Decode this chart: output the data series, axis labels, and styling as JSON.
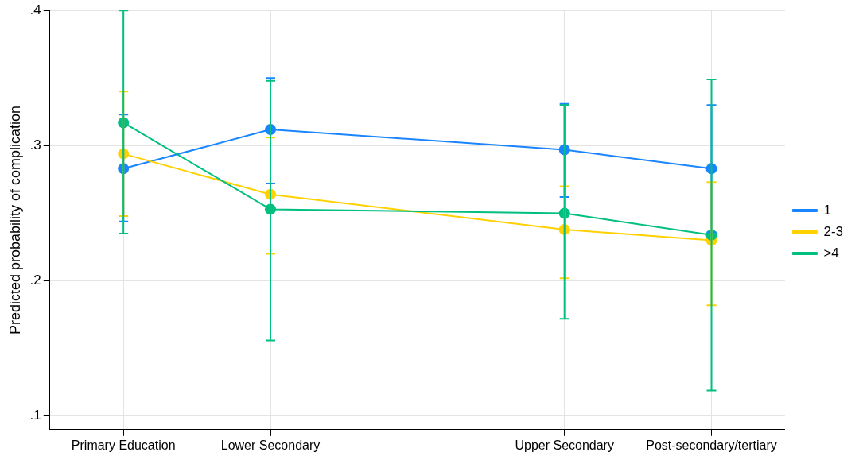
{
  "chart_data": {
    "type": "line",
    "ylabel": "Predicted probability of complication",
    "categories": [
      "Primary Education",
      "Lower Secondary",
      null,
      "Upper Secondary",
      "Post-secondary/tertiary"
    ],
    "ylim": [
      0.09,
      0.4
    ],
    "yticks": [
      {
        "value": 0.1,
        "label": ".1"
      },
      {
        "value": 0.2,
        "label": ".2"
      },
      {
        "value": 0.3,
        "label": ".3"
      },
      {
        "value": 0.4,
        "label": ".4"
      }
    ],
    "series": [
      {
        "name": "1",
        "color": "#1a85ff",
        "values": [
          0.283,
          0.312,
          null,
          0.297,
          0.283
        ],
        "errors": [
          [
            0.244,
            0.323
          ],
          [
            0.272,
            0.35
          ],
          null,
          [
            0.262,
            0.331
          ],
          [
            0.236,
            0.33
          ]
        ]
      },
      {
        "name": "2-3",
        "color": "#ffd100",
        "values": [
          0.294,
          0.264,
          null,
          0.238,
          0.23
        ],
        "errors": [
          [
            0.248,
            0.34
          ],
          [
            0.22,
            0.306
          ],
          null,
          [
            0.202,
            0.27
          ],
          [
            0.182,
            0.273
          ]
        ]
      },
      {
        "name": ">4",
        "color": "#00bf7f",
        "values": [
          0.317,
          0.253,
          null,
          0.25,
          0.234
        ],
        "errors": [
          [
            0.235,
            0.4
          ],
          [
            0.156,
            0.348
          ],
          null,
          [
            0.172,
            0.33
          ],
          [
            0.119,
            0.349
          ]
        ]
      }
    ],
    "grid": true,
    "legend": "right",
    "marker": "circle",
    "line_style": "solid"
  }
}
